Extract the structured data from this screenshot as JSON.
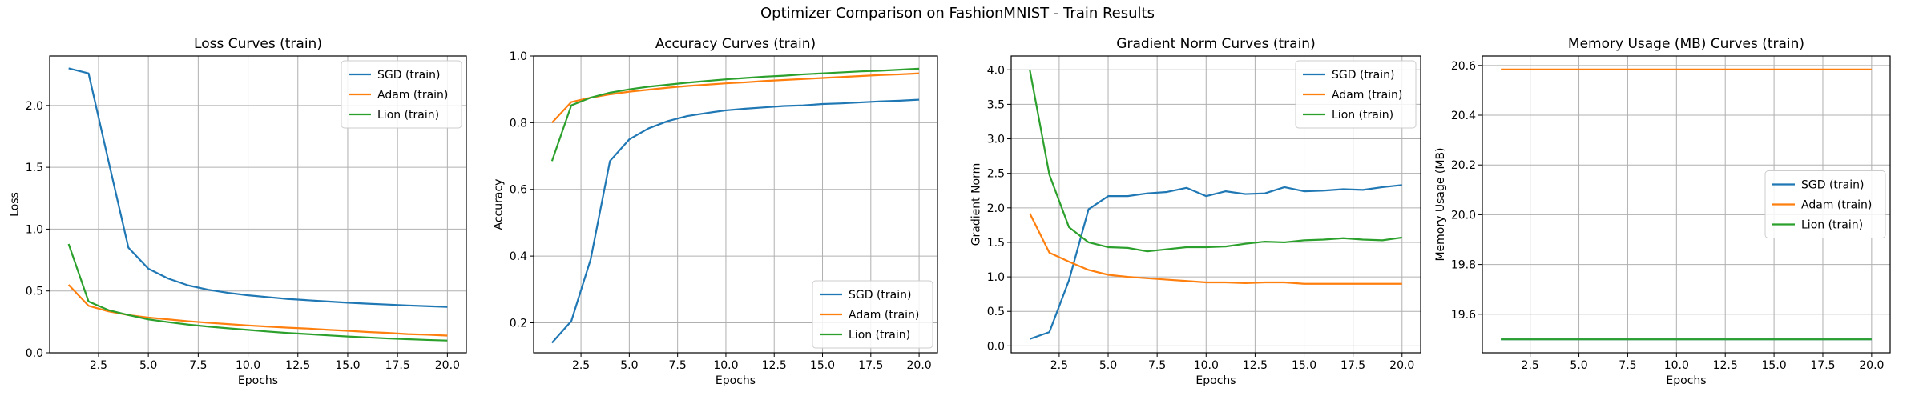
{
  "figure": {
    "title": "Optimizer Comparison on FashionMNIST - Train Results"
  },
  "colors": {
    "SGD": "#1f77b4",
    "Adam": "#ff7f0e",
    "Lion": "#2ca02c",
    "grid": "#b0b0b0"
  },
  "chart_data": [
    {
      "type": "line",
      "title": "Loss Curves (train)",
      "xlabel": "Epochs",
      "ylabel": "Loss",
      "x": [
        1,
        2,
        3,
        4,
        5,
        6,
        7,
        8,
        9,
        10,
        11,
        12,
        13,
        14,
        15,
        16,
        17,
        18,
        19,
        20
      ],
      "xlim": [
        0.05,
        20.95
      ],
      "ylim": [
        0,
        2.4
      ],
      "xticks": [
        2.5,
        5.0,
        7.5,
        10.0,
        12.5,
        15.0,
        17.5,
        20.0
      ],
      "xtick_labels": [
        "2.5",
        "5.0",
        "7.5",
        "10.0",
        "12.5",
        "15.0",
        "17.5",
        "20.0"
      ],
      "yticks": [
        0,
        0.5,
        1.0,
        1.5,
        2.0
      ],
      "ytick_labels": [
        "0.0",
        "0.5",
        "1.0",
        "1.5",
        "2.0"
      ],
      "grid": true,
      "legend_loc": "upper-right",
      "series": [
        {
          "name": "SGD (train)",
          "color": "#1f77b4",
          "values": [
            2.3,
            2.26,
            1.55,
            0.85,
            0.68,
            0.6,
            0.545,
            0.51,
            0.485,
            0.465,
            0.45,
            0.435,
            0.425,
            0.415,
            0.405,
            0.397,
            0.39,
            0.383,
            0.377,
            0.371
          ]
        },
        {
          "name": "Adam (train)",
          "color": "#ff7f0e",
          "values": [
            0.55,
            0.38,
            0.335,
            0.305,
            0.285,
            0.27,
            0.255,
            0.243,
            0.232,
            0.221,
            0.212,
            0.203,
            0.196,
            0.186,
            0.178,
            0.168,
            0.161,
            0.151,
            0.146,
            0.139
          ]
        },
        {
          "name": "Lion (train)",
          "color": "#2ca02c",
          "values": [
            0.88,
            0.415,
            0.345,
            0.305,
            0.27,
            0.248,
            0.228,
            0.212,
            0.198,
            0.185,
            0.172,
            0.16,
            0.151,
            0.141,
            0.132,
            0.124,
            0.116,
            0.11,
            0.104,
            0.099
          ]
        }
      ]
    },
    {
      "type": "line",
      "title": "Accuracy Curves (train)",
      "xlabel": "Epochs",
      "ylabel": "Accuracy",
      "x": [
        1,
        2,
        3,
        4,
        5,
        6,
        7,
        8,
        9,
        10,
        11,
        12,
        13,
        14,
        15,
        16,
        17,
        18,
        19,
        20
      ],
      "xlim": [
        0.05,
        20.95
      ],
      "ylim": [
        0.11,
        1.0
      ],
      "xticks": [
        2.5,
        5.0,
        7.5,
        10.0,
        12.5,
        15.0,
        17.5,
        20.0
      ],
      "xtick_labels": [
        "2.5",
        "5.0",
        "7.5",
        "10.0",
        "12.5",
        "15.0",
        "17.5",
        "20.0"
      ],
      "yticks": [
        0.2,
        0.4,
        0.6,
        0.8,
        1.0
      ],
      "ytick_labels": [
        "0.2",
        "0.4",
        "0.6",
        "0.8",
        "1.0"
      ],
      "grid": true,
      "legend_loc": "lower-right",
      "series": [
        {
          "name": "SGD (train)",
          "color": "#1f77b4",
          "values": [
            0.14,
            0.205,
            0.39,
            0.685,
            0.75,
            0.783,
            0.805,
            0.82,
            0.829,
            0.837,
            0.842,
            0.846,
            0.85,
            0.852,
            0.856,
            0.858,
            0.861,
            0.864,
            0.866,
            0.869
          ]
        },
        {
          "name": "Adam (train)",
          "color": "#ff7f0e",
          "values": [
            0.8,
            0.862,
            0.875,
            0.885,
            0.893,
            0.899,
            0.905,
            0.91,
            0.914,
            0.918,
            0.921,
            0.925,
            0.928,
            0.931,
            0.934,
            0.937,
            0.94,
            0.943,
            0.945,
            0.948
          ]
        },
        {
          "name": "Lion (train)",
          "color": "#2ca02c",
          "values": [
            0.685,
            0.852,
            0.875,
            0.89,
            0.9,
            0.908,
            0.914,
            0.92,
            0.925,
            0.93,
            0.934,
            0.938,
            0.941,
            0.945,
            0.948,
            0.951,
            0.954,
            0.956,
            0.959,
            0.962
          ]
        }
      ]
    },
    {
      "type": "line",
      "title": "Gradient Norm Curves (train)",
      "xlabel": "Epochs",
      "ylabel": "Gradient Norm",
      "x": [
        1,
        2,
        3,
        4,
        5,
        6,
        7,
        8,
        9,
        10,
        11,
        12,
        13,
        14,
        15,
        16,
        17,
        18,
        19,
        20
      ],
      "xlim": [
        0.05,
        20.95
      ],
      "ylim": [
        -0.1,
        4.2
      ],
      "xticks": [
        2.5,
        5.0,
        7.5,
        10.0,
        12.5,
        15.0,
        17.5,
        20.0
      ],
      "xtick_labels": [
        "2.5",
        "5.0",
        "7.5",
        "10.0",
        "12.5",
        "15.0",
        "17.5",
        "20.0"
      ],
      "yticks": [
        0,
        0.5,
        1.0,
        1.5,
        2.0,
        2.5,
        3.0,
        3.5,
        4.0
      ],
      "ytick_labels": [
        "0.0",
        "0.5",
        "1.0",
        "1.5",
        "2.0",
        "2.5",
        "3.0",
        "3.5",
        "4.0"
      ],
      "grid": true,
      "legend_loc": "upper-right",
      "series": [
        {
          "name": "SGD (train)",
          "color": "#1f77b4",
          "values": [
            0.1,
            0.2,
            0.95,
            1.98,
            2.17,
            2.17,
            2.21,
            2.23,
            2.29,
            2.17,
            2.24,
            2.2,
            2.21,
            2.3,
            2.24,
            2.25,
            2.27,
            2.26,
            2.3,
            2.33
          ]
        },
        {
          "name": "Adam (train)",
          "color": "#ff7f0e",
          "values": [
            1.92,
            1.35,
            1.22,
            1.1,
            1.03,
            1.0,
            0.98,
            0.96,
            0.94,
            0.92,
            0.92,
            0.91,
            0.92,
            0.92,
            0.9,
            0.9,
            0.9,
            0.9,
            0.9,
            0.9
          ]
        },
        {
          "name": "Lion (train)",
          "color": "#2ca02c",
          "values": [
            4.0,
            2.48,
            1.72,
            1.5,
            1.43,
            1.42,
            1.37,
            1.4,
            1.43,
            1.43,
            1.44,
            1.48,
            1.51,
            1.5,
            1.53,
            1.54,
            1.56,
            1.54,
            1.53,
            1.57
          ]
        }
      ]
    },
    {
      "type": "line",
      "title": "Memory Usage (MB) Curves (train)",
      "xlabel": "Epochs",
      "ylabel": "Memory Usage (MB)",
      "x": [
        1,
        2,
        3,
        4,
        5,
        6,
        7,
        8,
        9,
        10,
        11,
        12,
        13,
        14,
        15,
        16,
        17,
        18,
        19,
        20
      ],
      "xlim": [
        0.05,
        20.95
      ],
      "ylim": [
        19.445,
        20.638
      ],
      "xticks": [
        2.5,
        5.0,
        7.5,
        10.0,
        12.5,
        15.0,
        17.5,
        20.0
      ],
      "xtick_labels": [
        "2.5",
        "5.0",
        "7.5",
        "10.0",
        "12.5",
        "15.0",
        "17.5",
        "20.0"
      ],
      "yticks": [
        19.6,
        19.8,
        20.0,
        20.2,
        20.4,
        20.6
      ],
      "ytick_labels": [
        "19.6",
        "19.8",
        "20.0",
        "20.2",
        "20.4",
        "20.6"
      ],
      "grid": true,
      "legend_loc": "center-right",
      "series": [
        {
          "name": "SGD (train)",
          "color": "#1f77b4",
          "values": [
            19.499,
            19.499,
            19.499,
            19.499,
            19.499,
            19.499,
            19.499,
            19.499,
            19.499,
            19.499,
            19.499,
            19.499,
            19.499,
            19.499,
            19.499,
            19.499,
            19.499,
            19.499,
            19.499,
            19.499
          ]
        },
        {
          "name": "Adam (train)",
          "color": "#ff7f0e",
          "values": [
            20.584,
            20.584,
            20.584,
            20.584,
            20.584,
            20.584,
            20.584,
            20.584,
            20.584,
            20.584,
            20.584,
            20.584,
            20.584,
            20.584,
            20.584,
            20.584,
            20.584,
            20.584,
            20.584,
            20.584
          ]
        },
        {
          "name": "Lion (train)",
          "color": "#2ca02c",
          "values": [
            19.499,
            19.499,
            19.499,
            19.499,
            19.499,
            19.499,
            19.499,
            19.499,
            19.499,
            19.499,
            19.499,
            19.499,
            19.499,
            19.499,
            19.499,
            19.499,
            19.499,
            19.499,
            19.499,
            19.499
          ]
        }
      ]
    }
  ]
}
